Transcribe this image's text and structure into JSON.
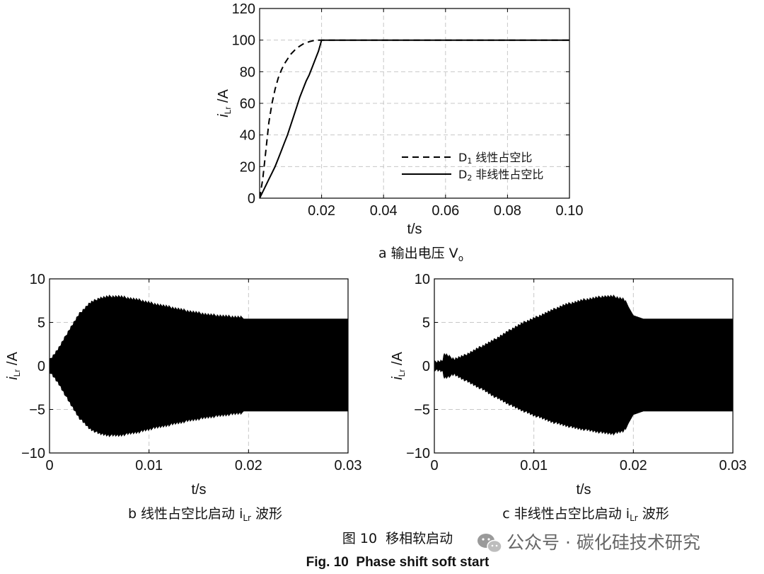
{
  "chart_data": [
    {
      "id": "a",
      "type": "line",
      "caption": "a 输出电压 V",
      "caption_sub": "o",
      "xlabel": "t/s",
      "ylabel": "i",
      "ylabel_sub": "Lr",
      "ylabel_unit": " /A",
      "xlim": [
        0,
        0.1
      ],
      "ylim": [
        0,
        120
      ],
      "xticks": [
        "0.02",
        "0.04",
        "0.06",
        "0.08",
        "0.10"
      ],
      "yticks": [
        "0",
        "20",
        "40",
        "60",
        "80",
        "100",
        "120"
      ],
      "grid": true,
      "legend_position": "lower-right",
      "series": [
        {
          "name": "D",
          "name_sub": "1",
          "name_rest": " 线性占空比",
          "style": "dashed",
          "x": [
            0,
            0.001,
            0.002,
            0.003,
            0.004,
            0.005,
            0.006,
            0.007,
            0.008,
            0.01,
            0.012,
            0.014,
            0.016,
            0.018,
            0.02,
            0.1
          ],
          "y": [
            0,
            12,
            30,
            48,
            60,
            69,
            76,
            81,
            85,
            91,
            95,
            97.5,
            99,
            100,
            100,
            100
          ]
        },
        {
          "name": "D",
          "name_sub": "2",
          "name_rest": " 非线性占空比",
          "style": "solid",
          "x": [
            0,
            0.001,
            0.002,
            0.003,
            0.004,
            0.005,
            0.006,
            0.007,
            0.008,
            0.009,
            0.01,
            0.011,
            0.012,
            0.013,
            0.014,
            0.015,
            0.016,
            0.017,
            0.018,
            0.019,
            0.02,
            0.1
          ],
          "y": [
            0,
            4,
            8,
            12,
            16,
            20,
            25,
            30,
            35,
            40,
            46,
            52,
            58,
            64,
            69,
            74,
            78,
            83,
            88,
            93,
            100,
            100
          ]
        }
      ]
    },
    {
      "id": "b",
      "type": "area",
      "caption": "b 线性占空比启动 i",
      "caption_sub": "Lr",
      "caption_rest": " 波形",
      "xlabel": "t/s",
      "ylabel": "i",
      "ylabel_sub": "Lr",
      "ylabel_unit": " /A",
      "xlim": [
        0,
        0.03
      ],
      "ylim": [
        -10,
        10
      ],
      "xticks": [
        "0",
        "0.01",
        "0.02",
        "0.03"
      ],
      "yticks": [
        "-10",
        "-5",
        "0",
        "5",
        "10"
      ],
      "grid": true,
      "envelope": {
        "t": [
          0,
          0.0005,
          0.001,
          0.002,
          0.003,
          0.004,
          0.005,
          0.006,
          0.007,
          0.008,
          0.009,
          0.01,
          0.012,
          0.014,
          0.016,
          0.018,
          0.0195,
          0.02,
          0.03
        ],
        "upper": [
          0.5,
          1.2,
          2.0,
          4.0,
          5.8,
          7.0,
          7.6,
          7.8,
          7.8,
          7.6,
          7.4,
          7.1,
          6.6,
          6.1,
          5.7,
          5.5,
          5.4,
          5.4,
          5.4
        ],
        "lower": [
          -0.5,
          -1.2,
          -2.0,
          -4.0,
          -5.8,
          -7.0,
          -7.6,
          -7.8,
          -7.8,
          -7.6,
          -7.4,
          -7.1,
          -6.6,
          -6.1,
          -5.7,
          -5.4,
          -5.2,
          -5.2,
          -5.2
        ]
      }
    },
    {
      "id": "c",
      "type": "area",
      "caption": "c 非线性占空比启动 i",
      "caption_sub": "Lr",
      "caption_rest": " 波形",
      "xlabel": "t/s",
      "ylabel": "i",
      "ylabel_sub": "Lr",
      "ylabel_unit": " /A",
      "xlim": [
        0,
        0.03
      ],
      "ylim": [
        -10,
        10
      ],
      "xticks": [
        "0",
        "0.01",
        "0.02",
        "0.03"
      ],
      "yticks": [
        "-10",
        "-5",
        "0",
        "5",
        "10"
      ],
      "grid": true,
      "envelope": {
        "t": [
          0,
          0.0008,
          0.001,
          0.002,
          0.003,
          0.004,
          0.005,
          0.006,
          0.007,
          0.008,
          0.009,
          0.01,
          0.011,
          0.012,
          0.013,
          0.014,
          0.015,
          0.016,
          0.017,
          0.018,
          0.019,
          0.0195,
          0.02,
          0.021,
          0.03
        ],
        "upper": [
          0.3,
          0.4,
          1.2,
          0.6,
          1.0,
          1.6,
          2.2,
          2.8,
          3.5,
          4.2,
          4.8,
          5.3,
          5.8,
          6.3,
          6.8,
          7.1,
          7.4,
          7.6,
          7.8,
          7.8,
          7.5,
          6.8,
          5.8,
          5.4,
          5.4
        ],
        "lower": [
          -0.3,
          -0.4,
          -1.2,
          -0.8,
          -1.4,
          -2.0,
          -2.6,
          -3.3,
          -3.9,
          -4.5,
          -5.0,
          -5.5,
          -5.9,
          -6.3,
          -6.6,
          -6.9,
          -7.1,
          -7.3,
          -7.5,
          -7.6,
          -7.3,
          -6.6,
          -5.6,
          -5.2,
          -5.2
        ]
      }
    }
  ],
  "figure_caption_cn": "图 10  移相软启动",
  "figure_caption_en": "Fig. 10  Phase shift soft start",
  "watermark": "公众号 · 碳化硅技术研究"
}
